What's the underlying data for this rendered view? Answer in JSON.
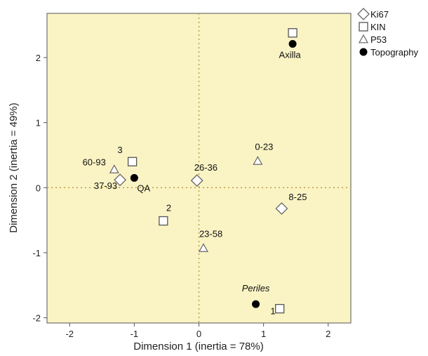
{
  "chart_data": {
    "type": "scatter",
    "xlabel": "Dimension 1 (inertia = 78%)",
    "ylabel": "Dimension 2 (inertia = 49%)",
    "xlim": [
      -2.35,
      2.35
    ],
    "ylim": [
      -2.08,
      2.68
    ],
    "xticks": [
      -2,
      -1,
      0,
      1,
      2
    ],
    "yticks": [
      -2,
      -1,
      0,
      1,
      2
    ],
    "reference_lines": {
      "x": 0,
      "y": 0
    },
    "background": "#faf3c4",
    "legend_position": "outside-top-right",
    "series": [
      {
        "name": "Ki67",
        "marker": "diamond",
        "points": [
          {
            "x": -1.22,
            "y": 0.12,
            "label": "37-93"
          },
          {
            "x": -0.03,
            "y": 0.11,
            "label": "26-36"
          },
          {
            "x": 1.28,
            "y": -0.32,
            "label": "8-25"
          }
        ]
      },
      {
        "name": "KIN",
        "marker": "square",
        "points": [
          {
            "x": 1.45,
            "y": 2.38,
            "label": ""
          },
          {
            "x": -1.03,
            "y": 0.4,
            "label": "3"
          },
          {
            "x": -0.55,
            "y": -0.51,
            "label": "2"
          },
          {
            "x": 1.25,
            "y": -1.86,
            "label": "1"
          }
        ]
      },
      {
        "name": "P53",
        "marker": "triangle",
        "points": [
          {
            "x": -1.31,
            "y": 0.28,
            "label": "60-93"
          },
          {
            "x": 0.91,
            "y": 0.41,
            "label": "0-23"
          },
          {
            "x": 0.07,
            "y": -0.93,
            "label": "23-58"
          }
        ]
      },
      {
        "name": "Topography",
        "marker": "circle",
        "points": [
          {
            "x": 1.45,
            "y": 2.21,
            "label": "Axilla"
          },
          {
            "x": -1.0,
            "y": 0.15,
            "label": "QA"
          },
          {
            "x": 0.88,
            "y": -1.79,
            "label": "Periles",
            "italic": true
          }
        ]
      }
    ]
  }
}
